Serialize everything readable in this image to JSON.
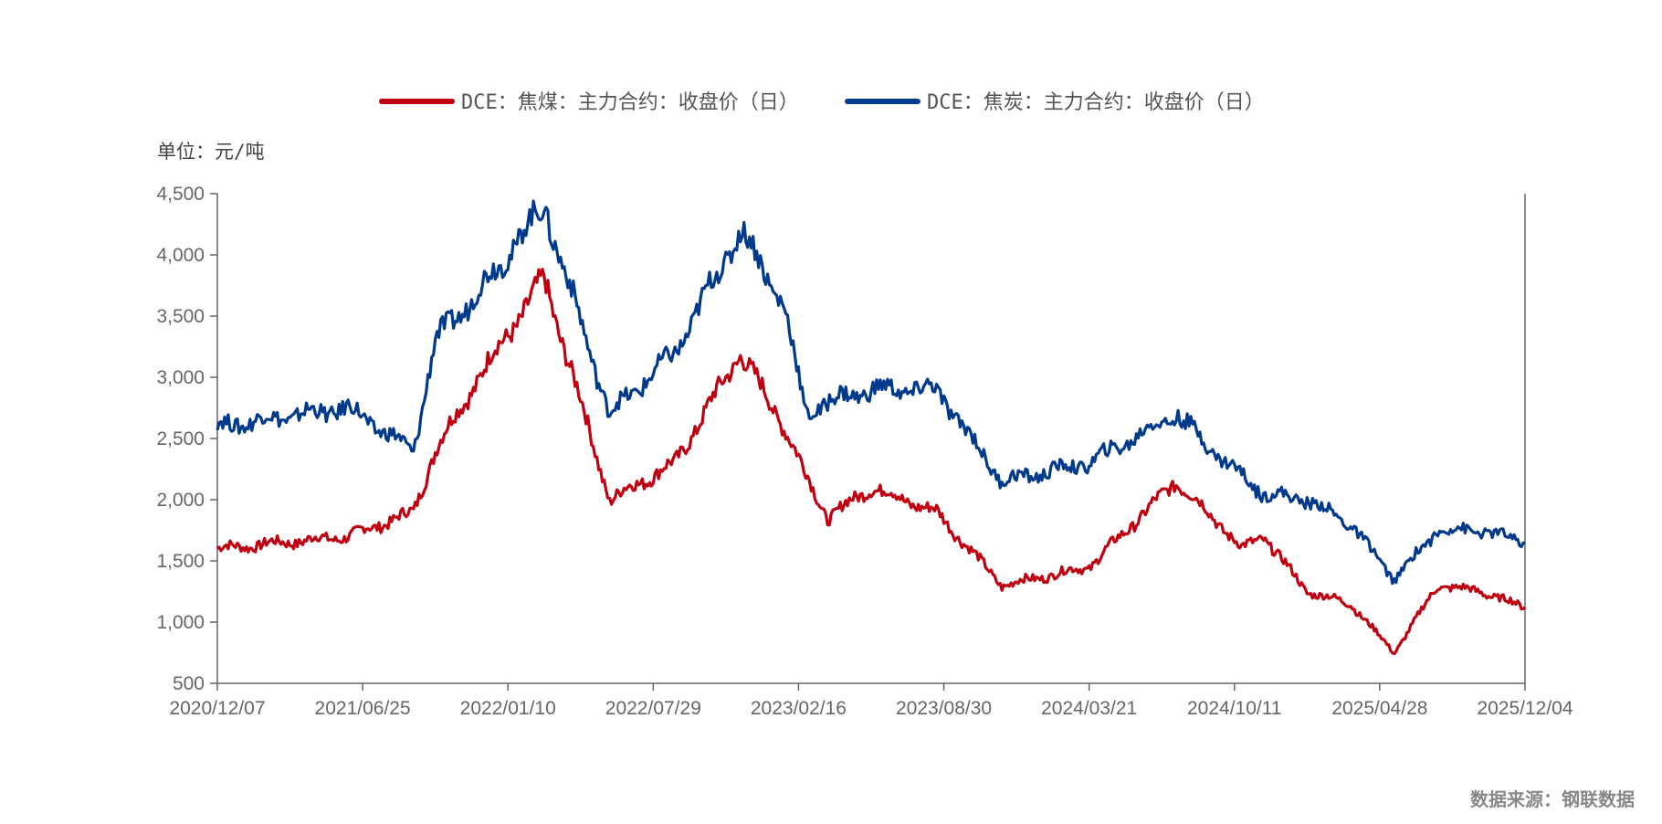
{
  "chart_data": {
    "type": "line",
    "unit_label": "单位：元/吨",
    "source": "数据来源：钢联数据",
    "ylim": [
      500,
      4500
    ],
    "yticks": [
      {
        "value": 500,
        "label": "500"
      },
      {
        "value": 1000,
        "label": "1,000"
      },
      {
        "value": 1500,
        "label": "1,500"
      },
      {
        "value": 2000,
        "label": "2,000"
      },
      {
        "value": 2500,
        "label": "2,500"
      },
      {
        "value": 3000,
        "label": "3,000"
      },
      {
        "value": 3500,
        "label": "3,500"
      },
      {
        "value": 4000,
        "label": "4,000"
      },
      {
        "value": 4500,
        "label": "4,500"
      }
    ],
    "xticks": [
      "2020/12/07",
      "2021/06/25",
      "2022/01/10",
      "2022/07/29",
      "2023/02/16",
      "2023/08/30",
      "2024/03/21",
      "2024/10/11",
      "2025/04/28",
      "2025/12/04"
    ],
    "x_index": [
      0,
      6,
      9,
      10,
      12,
      15,
      18,
      21,
      24,
      26,
      27,
      28,
      30,
      33,
      36,
      40,
      44,
      46,
      47,
      48,
      50,
      52,
      54,
      56,
      58,
      60
    ],
    "series": [
      {
        "name": "DCE：焦煤：主力合约：收盘价（日）",
        "color": "#C00010",
        "values": [
          1600,
          1700,
          1900,
          2400,
          3000,
          3800,
          2000,
          2300,
          3200,
          2600,
          2200,
          1850,
          2100,
          1900,
          1300,
          1450,
          2150,
          1800,
          1600,
          1700,
          1250,
          1150,
          750,
          1300,
          1250,
          1120
        ]
      },
      {
        "name": "DCE：焦炭：主力合约：收盘价（日）",
        "color": "#003A8C",
        "values": [
          2600,
          2750,
          2400,
          3300,
          3700,
          4400,
          2700,
          3200,
          4200,
          3600,
          2700,
          2800,
          2900,
          2900,
          2150,
          2300,
          2700,
          2350,
          2200,
          2050,
          2000,
          1800,
          1350,
          1750,
          1750,
          1650
        ]
      }
    ]
  }
}
